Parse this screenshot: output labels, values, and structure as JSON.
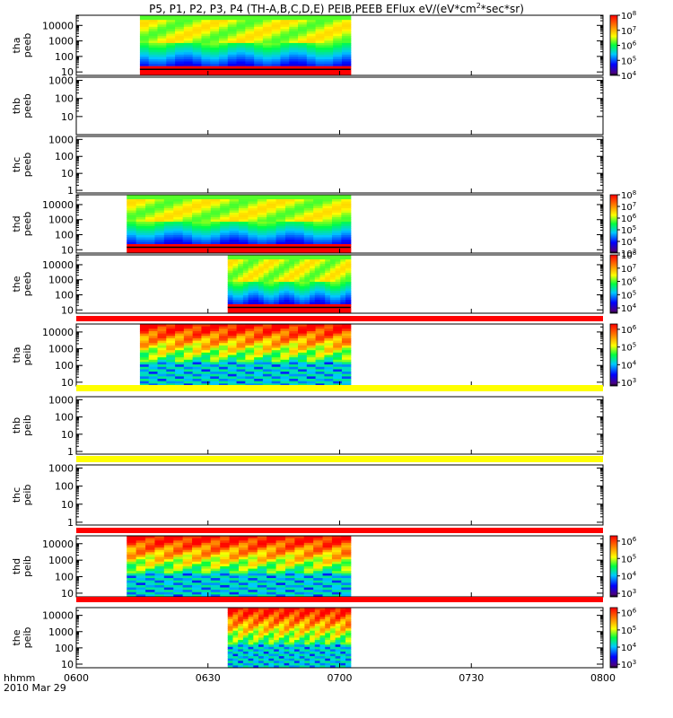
{
  "chart_data": {
    "type": "heatmap",
    "title": "P5, P1, P2, P3, P4 (TH-A,B,C,D,E) PEIB,PEEB EFlux eV/(eV*cm",
    "title_sup": "2",
    "title_tail": "*sec*sr)",
    "time_axis": {
      "ticks": [
        "0600",
        "0630",
        "0700",
        "0730",
        "0800"
      ],
      "tick_minutes": [
        0,
        30,
        60,
        90,
        120
      ],
      "range_minutes": [
        0,
        120
      ],
      "label": "hhmm",
      "date": "2010 Mar 29"
    },
    "panels": [
      {
        "id": "tha-peeb",
        "probe": "tha",
        "instrument": "peeb",
        "yticks": [
          "10",
          "100",
          "1000",
          "10000"
        ],
        "ytick_values": [
          10,
          100,
          1000,
          10000
        ],
        "ylim": [
          6,
          45000
        ],
        "data": true,
        "segments": [
          [
            14.5,
            62.5
          ]
        ],
        "colorbar": {
          "labels": [
            "10",
            "10",
            "10",
            "10",
            "10"
          ],
          "exponents": [
            "8",
            "7",
            "6",
            "5",
            "4"
          ],
          "exp_values": [
            8,
            7,
            6,
            5,
            4
          ],
          "range": [
            4,
            8
          ]
        }
      },
      {
        "id": "thb-peeb",
        "probe": "thb",
        "instrument": "peeb",
        "yticks": [
          "10",
          "100",
          "1000"
        ],
        "ytick_values": [
          10,
          100,
          1000
        ],
        "ylim": [
          1,
          1500
        ],
        "data": false
      },
      {
        "id": "thc-peeb",
        "probe": "thc",
        "instrument": "peeb",
        "yticks": [
          "1",
          "10",
          "100",
          "1000"
        ],
        "ytick_values": [
          1,
          10,
          100,
          1000
        ],
        "ylim": [
          0.7,
          1500
        ],
        "data": false
      },
      {
        "id": "thd-peeb",
        "probe": "thd",
        "instrument": "peeb",
        "yticks": [
          "10",
          "100",
          "1000",
          "10000"
        ],
        "ytick_values": [
          10,
          100,
          1000,
          10000
        ],
        "ylim": [
          6,
          45000
        ],
        "data": true,
        "segments": [
          [
            11.5,
            62.5
          ]
        ],
        "colorbar": {
          "labels": [
            "10",
            "10",
            "10",
            "10",
            "10",
            "10"
          ],
          "exponents": [
            "8",
            "7",
            "6",
            "5",
            "4",
            "3"
          ],
          "exp_values": [
            8,
            7,
            6,
            5,
            4,
            3
          ],
          "range": [
            3,
            8
          ]
        }
      },
      {
        "id": "the-peeb",
        "probe": "the",
        "instrument": "peeb",
        "yticks": [
          "10",
          "100",
          "1000",
          "10000"
        ],
        "ytick_values": [
          10,
          100,
          1000,
          10000
        ],
        "ylim": [
          6,
          45000
        ],
        "data": true,
        "segments": [
          [
            34.5,
            62.5
          ]
        ],
        "colorbar": {
          "labels": [
            "10",
            "10",
            "10",
            "10",
            "10"
          ],
          "exponents": [
            "8",
            "7",
            "6",
            "5",
            "4"
          ],
          "exp_values": [
            8,
            7,
            6,
            5,
            4
          ],
          "range": [
            3.6,
            8
          ]
        }
      },
      {
        "id": "tha-peib",
        "probe": "tha",
        "instrument": "peib",
        "yticks": [
          "10",
          "100",
          "1000",
          "10000"
        ],
        "ytick_values": [
          10,
          100,
          1000,
          10000
        ],
        "ylim": [
          6,
          30000
        ],
        "data": true,
        "segments": [
          [
            14.5,
            62.5
          ]
        ],
        "colorbar": {
          "labels": [
            "10",
            "10",
            "10",
            "10"
          ],
          "exponents": [
            "6",
            "5",
            "4",
            "3"
          ],
          "exp_values": [
            6,
            5,
            4,
            3
          ],
          "range": [
            2.8,
            6.3
          ]
        }
      },
      {
        "id": "thb-peib",
        "probe": "thb",
        "instrument": "peib",
        "yticks": [
          "1",
          "10",
          "100",
          "1000"
        ],
        "ytick_values": [
          1,
          10,
          100,
          1000
        ],
        "ylim": [
          0.7,
          1500
        ],
        "data": false
      },
      {
        "id": "thc-peib",
        "probe": "thc",
        "instrument": "peib",
        "yticks": [
          "1",
          "10",
          "100",
          "1000"
        ],
        "ytick_values": [
          1,
          10,
          100,
          1000
        ],
        "ylim": [
          0.7,
          1500
        ],
        "data": false
      },
      {
        "id": "thd-peib",
        "probe": "thd",
        "instrument": "peib",
        "yticks": [
          "10",
          "100",
          "1000",
          "10000"
        ],
        "ytick_values": [
          10,
          100,
          1000,
          10000
        ],
        "ylim": [
          6,
          30000
        ],
        "data": true,
        "segments": [
          [
            11.5,
            62.5
          ]
        ],
        "colorbar": {
          "labels": [
            "10",
            "10",
            "10",
            "10"
          ],
          "exponents": [
            "6",
            "5",
            "4",
            "3"
          ],
          "exp_values": [
            6,
            5,
            4,
            3
          ],
          "range": [
            2.8,
            6.3
          ]
        }
      },
      {
        "id": "the-peib",
        "probe": "the",
        "instrument": "peib",
        "yticks": [
          "10",
          "100",
          "1000",
          "10000"
        ],
        "ytick_values": [
          10,
          100,
          1000,
          10000
        ],
        "ylim": [
          6,
          30000
        ],
        "data": true,
        "segments": [
          [
            34.5,
            62.5
          ]
        ],
        "colorbar": {
          "labels": [
            "10",
            "10",
            "10",
            "10"
          ],
          "exponents": [
            "6",
            "5",
            "4",
            "3"
          ],
          "exp_values": [
            6,
            5,
            4,
            3
          ],
          "range": [
            2.8,
            6.3
          ]
        }
      }
    ],
    "separator_bars": [
      {
        "after_panel": "the-peeb",
        "color": "#ff0000"
      },
      {
        "after_panel": "tha-peib",
        "color": "#ffff00"
      },
      {
        "after_panel": "thb-peib",
        "color": "#ffff00"
      },
      {
        "after_panel": "thc-peib",
        "color": "#ff0000"
      },
      {
        "after_panel": "thd-peib",
        "color": "#ff0000"
      }
    ]
  }
}
